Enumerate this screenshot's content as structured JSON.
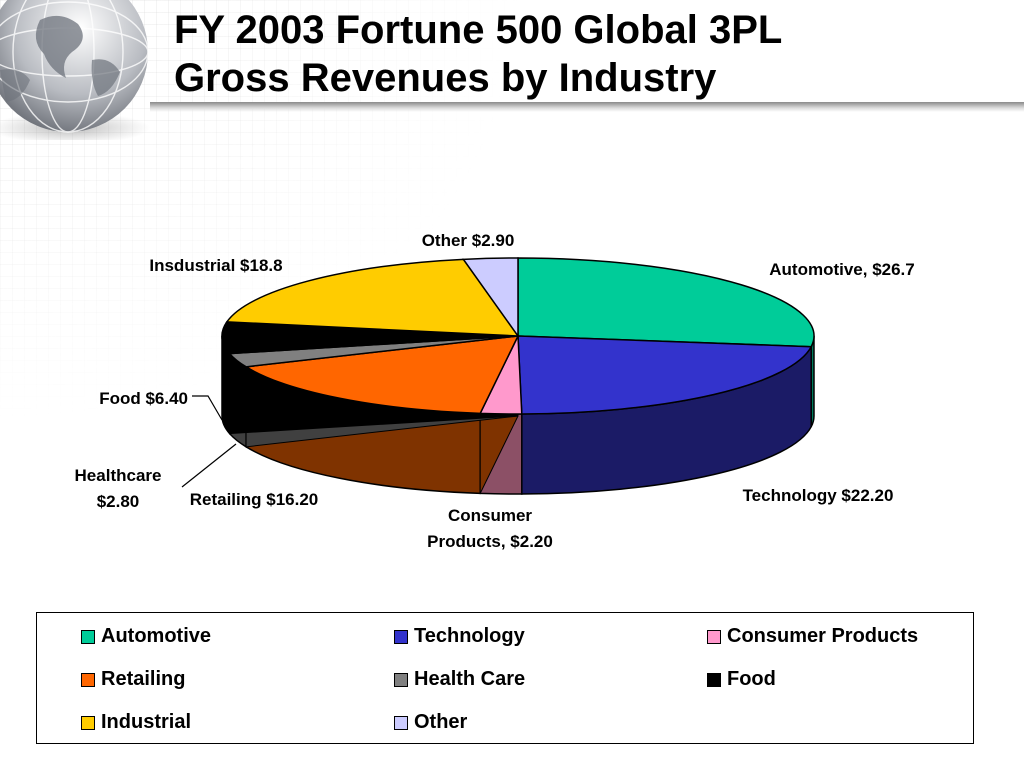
{
  "title": {
    "line1": "FY 2003 Fortune 500 Global 3PL",
    "line2": "Gross Revenues by Industry"
  },
  "chart_data": {
    "type": "pie",
    "title": "FY 2003 Fortune 500 Global 3PL Gross Revenues by Industry",
    "style": "3d",
    "slices": [
      {
        "name": "Automotive",
        "value": 26.7,
        "label": "Automotive, $26.7",
        "top_color": "#00CC99",
        "side_color": "#007A5C"
      },
      {
        "name": "Technology",
        "value": 22.2,
        "label": "Technology $22.20",
        "top_color": "#3333CC",
        "side_color": "#1B1B66"
      },
      {
        "name": "Consumer Products",
        "value": 2.2,
        "label_lines": [
          "Consumer",
          "Products, $2.20"
        ],
        "top_color": "#FF99CC",
        "side_color": "#8C5066"
      },
      {
        "name": "Retailing",
        "value": 16.2,
        "label": "Retailing $16.20",
        "top_color": "#FF6600",
        "side_color": "#7F3300"
      },
      {
        "name": "Health Care",
        "value": 2.8,
        "label_lines": [
          "Healthcare",
          "$2.80"
        ],
        "top_color": "#808080",
        "side_color": "#404040"
      },
      {
        "name": "Food",
        "value": 6.4,
        "label": "Food $6.40",
        "top_color": "#000000",
        "side_color": "#000000"
      },
      {
        "name": "Industrial",
        "value": 18.8,
        "label": "Insdustrial $18.8",
        "top_color": "#FFCC00",
        "side_color": "#806600"
      },
      {
        "name": "Other",
        "value": 2.9,
        "label": "Other $2.90",
        "top_color": "#CCCCFF",
        "side_color": "#6666A0"
      }
    ],
    "legend": {
      "placement": "bottom",
      "items": [
        "Automotive",
        "Technology",
        "Consumer Products",
        "Retailing",
        "Health Care",
        "Food",
        "Industrial",
        "Other"
      ]
    }
  }
}
